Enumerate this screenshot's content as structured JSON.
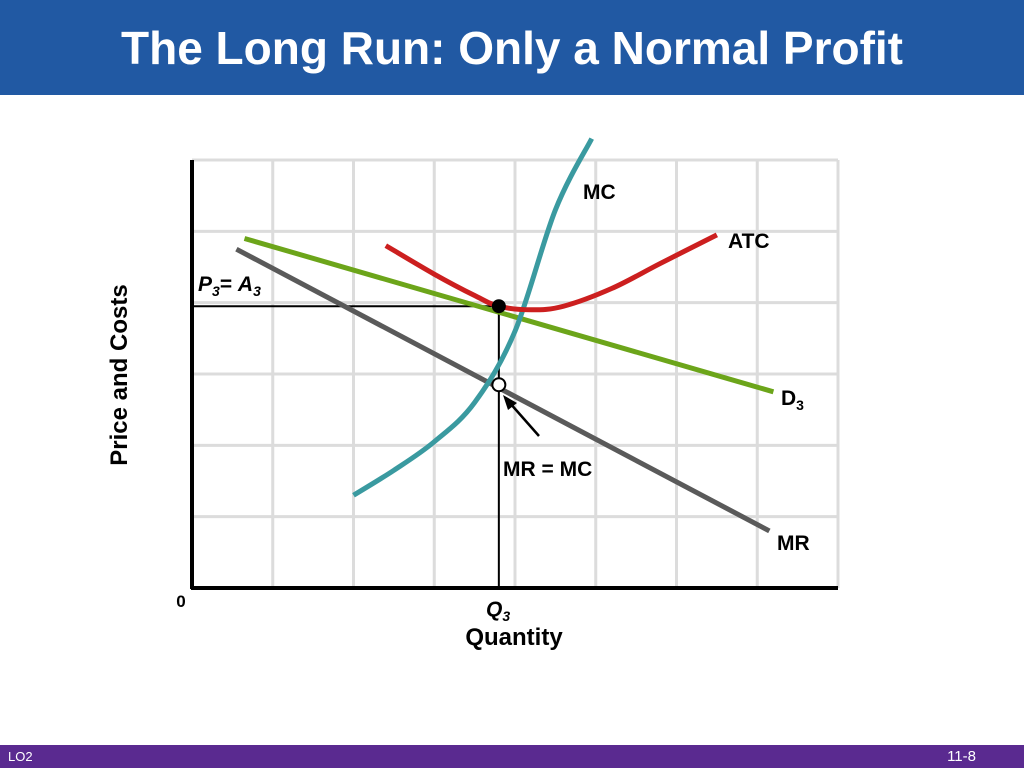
{
  "header": {
    "title": "The Long Run: Only a Normal Profit"
  },
  "footer": {
    "left": "LO2",
    "right": "11-8"
  },
  "chart_data": {
    "type": "line",
    "xlabel": "Quantity",
    "ylabel": "Price and Costs",
    "origin_label": "0",
    "x_tick_label": {
      "main": "Q",
      "sub": "3"
    },
    "y_tick_label": {
      "main": "P",
      "sub": "3",
      "eq": "= ",
      "main2": "A",
      "sub2": "3"
    },
    "annotation": "MR = MC",
    "grid": true,
    "xlim": [
      0,
      8
    ],
    "ylim": [
      0,
      6
    ],
    "series": [
      {
        "name": "MC",
        "color": "#3a9aa0",
        "points": [
          [
            2.0,
            1.3
          ],
          [
            2.5,
            1.65
          ],
          [
            3.0,
            2.05
          ],
          [
            3.5,
            2.6
          ],
          [
            4.0,
            3.6
          ],
          [
            4.5,
            5.3
          ],
          [
            4.95,
            6.3
          ]
        ]
      },
      {
        "name": "ATC",
        "color": "#cc1f1f",
        "points": [
          [
            2.4,
            4.8
          ],
          [
            3.0,
            4.4
          ],
          [
            3.5,
            4.1
          ],
          [
            3.8,
            3.95
          ],
          [
            4.2,
            3.9
          ],
          [
            4.6,
            3.95
          ],
          [
            5.2,
            4.2
          ],
          [
            5.8,
            4.55
          ],
          [
            6.5,
            4.95
          ]
        ]
      },
      {
        "name": "D",
        "sub": "3",
        "color": "#6ca51a",
        "points": [
          [
            0.65,
            4.9
          ],
          [
            7.2,
            2.75
          ]
        ]
      },
      {
        "name": "MR",
        "color": "#5a5a5a",
        "points": [
          [
            0.55,
            4.75
          ],
          [
            7.15,
            0.8
          ]
        ]
      }
    ],
    "equilibrium": {
      "q": 3.8,
      "price": 3.95,
      "mr_mc": 2.85
    }
  }
}
